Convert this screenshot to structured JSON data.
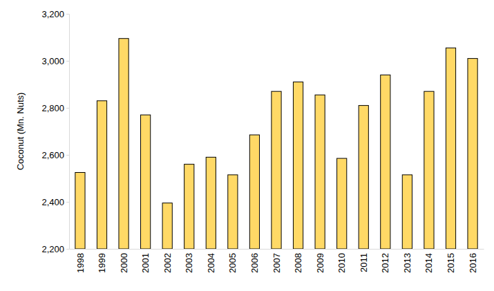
{
  "chart_data": {
    "type": "bar",
    "y_label": "Coconut (Mn. Nuts)",
    "categories": [
      "1998",
      "1999",
      "2000",
      "2001",
      "2002",
      "2003",
      "2004",
      "2005",
      "2006",
      "2007",
      "2008",
      "2009",
      "2010",
      "2011",
      "2012",
      "2013",
      "2014",
      "2015",
      "2016"
    ],
    "values": [
      2525,
      2830,
      3095,
      2770,
      2395,
      2560,
      2590,
      2515,
      2685,
      2870,
      2910,
      2855,
      2585,
      2810,
      2940,
      2515,
      2870,
      3055,
      3010
    ],
    "color": "#ffd966",
    "ylim": [
      2200,
      3200
    ],
    "yticks": [
      {
        "value": 2200,
        "label": "2,200"
      },
      {
        "value": 2400,
        "label": "2,400"
      },
      {
        "value": 2600,
        "label": "2,600"
      },
      {
        "value": 2800,
        "label": "2,800"
      },
      {
        "value": 3000,
        "label": "3,000"
      },
      {
        "value": 3200,
        "label": "3,200"
      }
    ],
    "grid": false
  }
}
